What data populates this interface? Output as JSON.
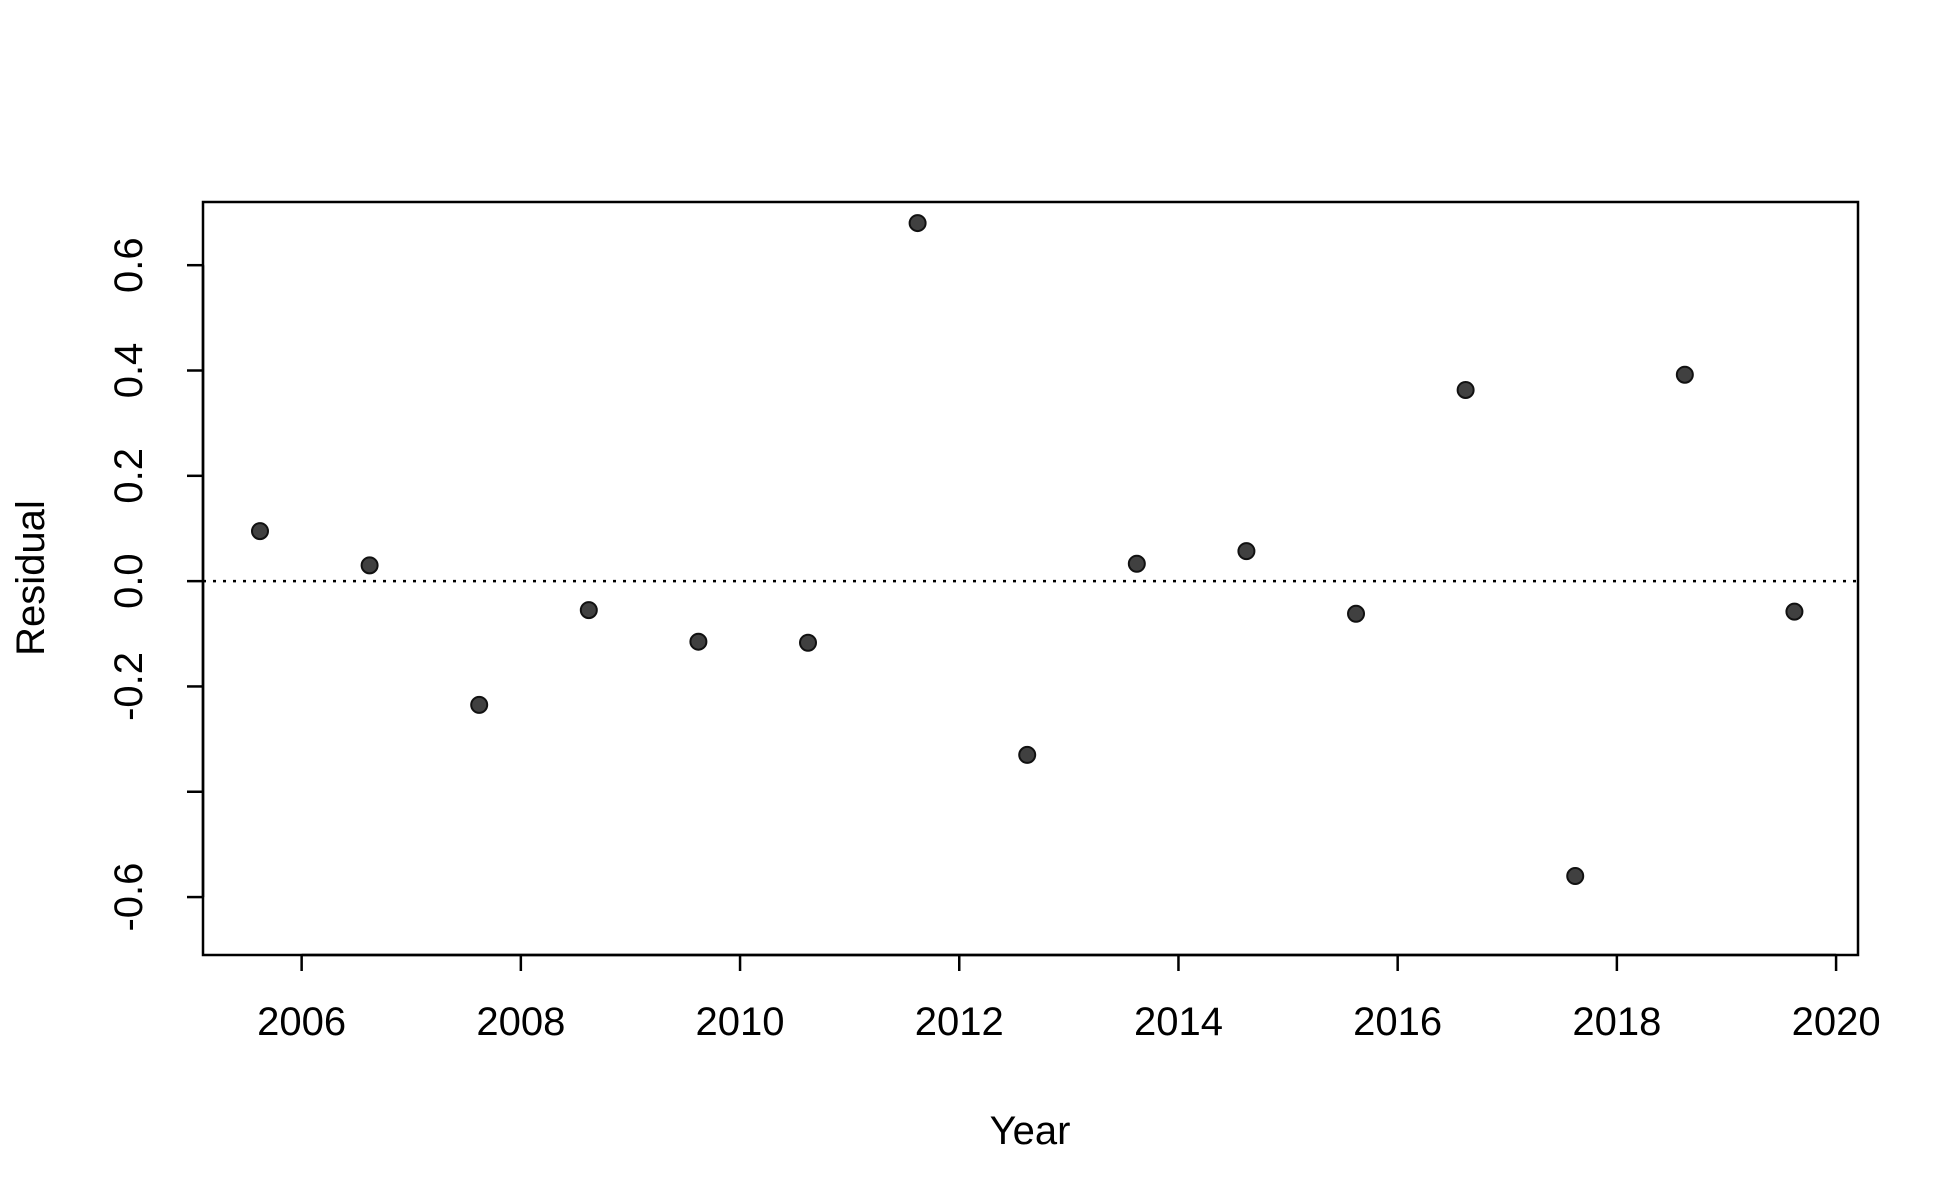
{
  "chart_data": {
    "type": "scatter",
    "title": "",
    "xlabel": "Year",
    "ylabel": "Residual",
    "xlim": [
      2005.1,
      2020.2
    ],
    "ylim": [
      -0.71,
      0.72
    ],
    "x_ticks": [
      2006,
      2008,
      2010,
      2012,
      2014,
      2016,
      2018,
      2020
    ],
    "x_tick_labels": [
      "2006",
      "2008",
      "2010",
      "2012",
      "2014",
      "2016",
      "2018",
      "2020"
    ],
    "y_ticks": [
      -0.6,
      -0.4,
      -0.2,
      0.0,
      0.2,
      0.4,
      0.6
    ],
    "y_tick_labels": [
      "-0.6",
      "",
      "-0.2",
      "0.0",
      "0.2",
      "0.4",
      "0.6"
    ],
    "reference_line": {
      "y": 0.0,
      "style": "dotted"
    },
    "grid": false,
    "point_color": "#404040",
    "points": [
      {
        "x": 2005.62,
        "y": 0.095
      },
      {
        "x": 2006.62,
        "y": 0.03
      },
      {
        "x": 2007.62,
        "y": -0.235
      },
      {
        "x": 2008.62,
        "y": -0.055
      },
      {
        "x": 2009.62,
        "y": -0.115
      },
      {
        "x": 2010.62,
        "y": -0.117
      },
      {
        "x": 2011.62,
        "y": 0.68
      },
      {
        "x": 2012.62,
        "y": -0.33
      },
      {
        "x": 2013.62,
        "y": 0.033
      },
      {
        "x": 2014.62,
        "y": 0.057
      },
      {
        "x": 2015.62,
        "y": -0.062
      },
      {
        "x": 2016.62,
        "y": 0.363
      },
      {
        "x": 2017.62,
        "y": -0.56
      },
      {
        "x": 2018.62,
        "y": 0.392
      },
      {
        "x": 2019.62,
        "y": -0.058
      }
    ]
  }
}
